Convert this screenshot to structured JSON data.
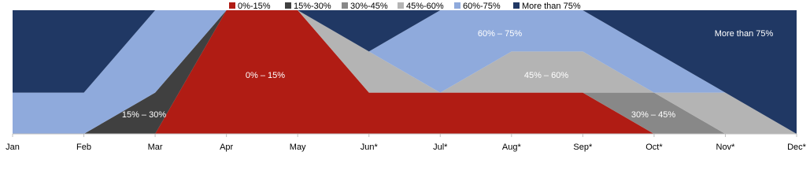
{
  "chart_data": {
    "type": "stacked_area",
    "categories": [
      "Jan",
      "Feb",
      "Mar",
      "Apr",
      "May",
      "Jun*",
      "Jul*",
      "Aug*",
      "Sep*",
      "Oct*",
      "Nov*",
      "Dec*"
    ],
    "series": [
      {
        "name": "0%-15%",
        "color": "#b01c14",
        "values": [
          0,
          0,
          0,
          3,
          3,
          1,
          1,
          1,
          1,
          0,
          0,
          0
        ]
      },
      {
        "name": "15%-30%",
        "color": "#404040",
        "values": [
          0,
          0,
          1,
          0,
          0,
          0,
          0,
          0,
          0,
          0,
          0,
          0
        ]
      },
      {
        "name": "30%-45%",
        "color": "#888888",
        "values": [
          0,
          0,
          0,
          0,
          0,
          0,
          0,
          0,
          0,
          1,
          0,
          0
        ]
      },
      {
        "name": "45%-60%",
        "color": "#b4b4b4",
        "values": [
          0,
          0,
          0,
          0,
          0,
          1,
          0,
          1,
          1,
          0,
          1,
          0
        ]
      },
      {
        "name": "60%-75%",
        "color": "#8faadc",
        "values": [
          1,
          1,
          2,
          0,
          0,
          0,
          2,
          1,
          1,
          1,
          0,
          0
        ]
      },
      {
        "name": "More than 75%",
        "color": "#203864",
        "values": [
          2,
          2,
          0,
          0,
          0,
          1,
          0,
          0,
          0,
          1,
          2,
          3
        ]
      }
    ],
    "area_labels": [
      "0% – 15%",
      "15% – 30%",
      "30% – 45%",
      "45% – 60%",
      "60% – 75%",
      "More than 75%"
    ],
    "ylim": [
      0,
      3
    ]
  }
}
